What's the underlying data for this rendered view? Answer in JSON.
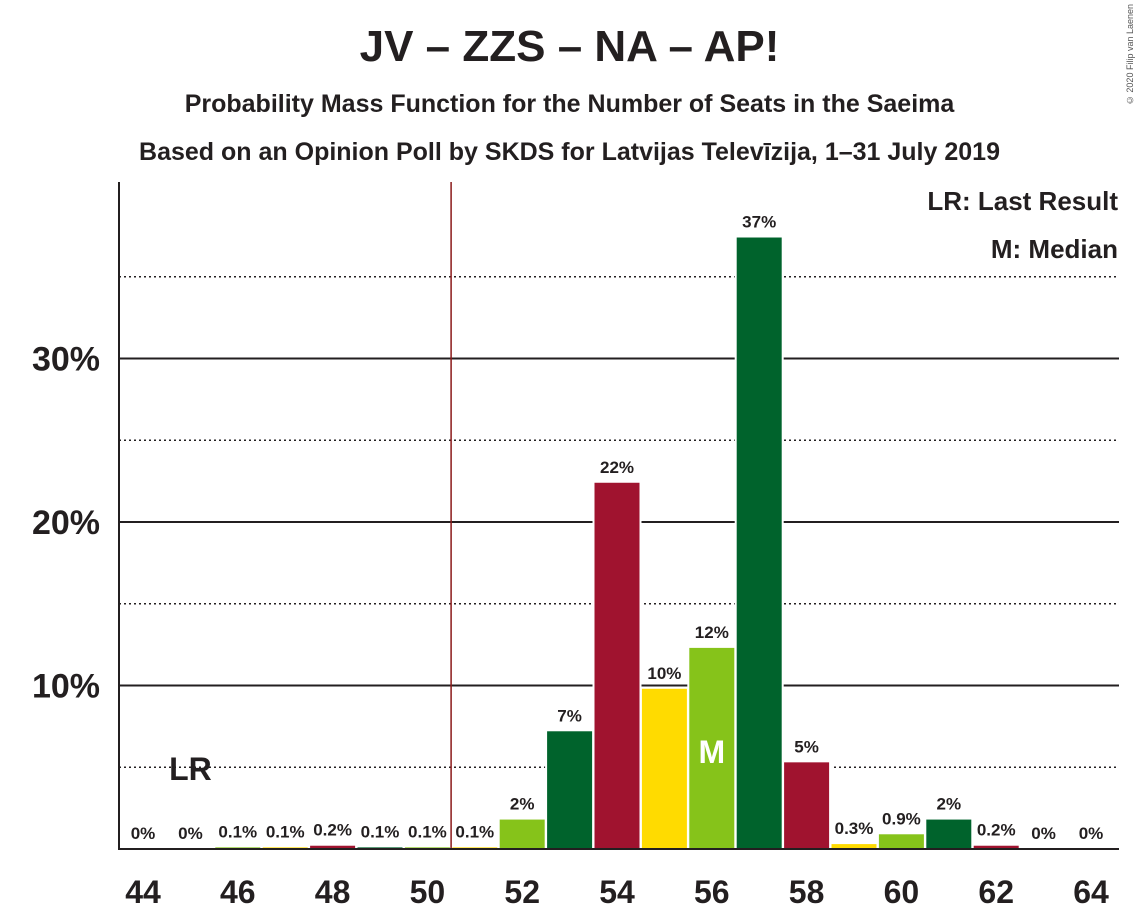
{
  "header": {
    "title": "JV – ZZS – NA – AP!",
    "subtitle1": "Probability Mass Function for the Number of Seats in the Saeima",
    "subtitle2": "Based on an Opinion Poll by SKDS for Latvijas Televīzija, 1–31 July 2019",
    "copyright": "© 2020 Filip van Laenen"
  },
  "legend": {
    "last_result": "LR: Last Result",
    "median": "M: Median"
  },
  "colors": {
    "red": "#a0132f",
    "green": "#00632c",
    "lime": "#86c31a",
    "yellow": "#ffdb00",
    "last_result_line": "#8b1a1a"
  },
  "chart_data": {
    "type": "bar",
    "x": [
      44,
      45,
      46,
      47,
      48,
      49,
      50,
      51,
      52,
      53,
      54,
      55,
      56,
      57,
      58,
      59,
      60,
      61,
      62,
      63,
      64
    ],
    "values": [
      0,
      0,
      0.1,
      0.1,
      0.2,
      0.1,
      0.1,
      0.1,
      1.8,
      7.2,
      22.4,
      9.8,
      12.3,
      37.4,
      5.3,
      0.3,
      0.9,
      1.8,
      0.2,
      0,
      0
    ],
    "labels": [
      "0%",
      "0%",
      "0.1%",
      "0.1%",
      "0.2%",
      "0.1%",
      "0.1%",
      "0.1%",
      "2%",
      "7%",
      "22%",
      "10%",
      "12%",
      "37%",
      "5%",
      "0.3%",
      "0.9%",
      "2%",
      "0.2%",
      "0%",
      "0%"
    ],
    "bar_colors": [
      "red",
      "green",
      "lime",
      "yellow",
      "red",
      "green",
      "lime",
      "yellow",
      "lime",
      "green",
      "red",
      "yellow",
      "lime",
      "green",
      "red",
      "yellow",
      "lime",
      "green",
      "red",
      "yellow",
      "lime"
    ],
    "xticks": [
      44,
      46,
      48,
      50,
      52,
      54,
      56,
      58,
      60,
      62,
      64
    ],
    "yticks": [
      {
        "value": 10,
        "label": "10%"
      },
      {
        "value": 20,
        "label": "20%"
      },
      {
        "value": 30,
        "label": "30%"
      }
    ],
    "minor_gridlines": [
      5,
      15,
      25,
      35
    ],
    "ylim": [
      0,
      40
    ],
    "last_result": {
      "seat": 45,
      "label": "LR"
    },
    "last_result_line_x": 50.5,
    "median": {
      "seat": 56,
      "label": "M"
    }
  }
}
